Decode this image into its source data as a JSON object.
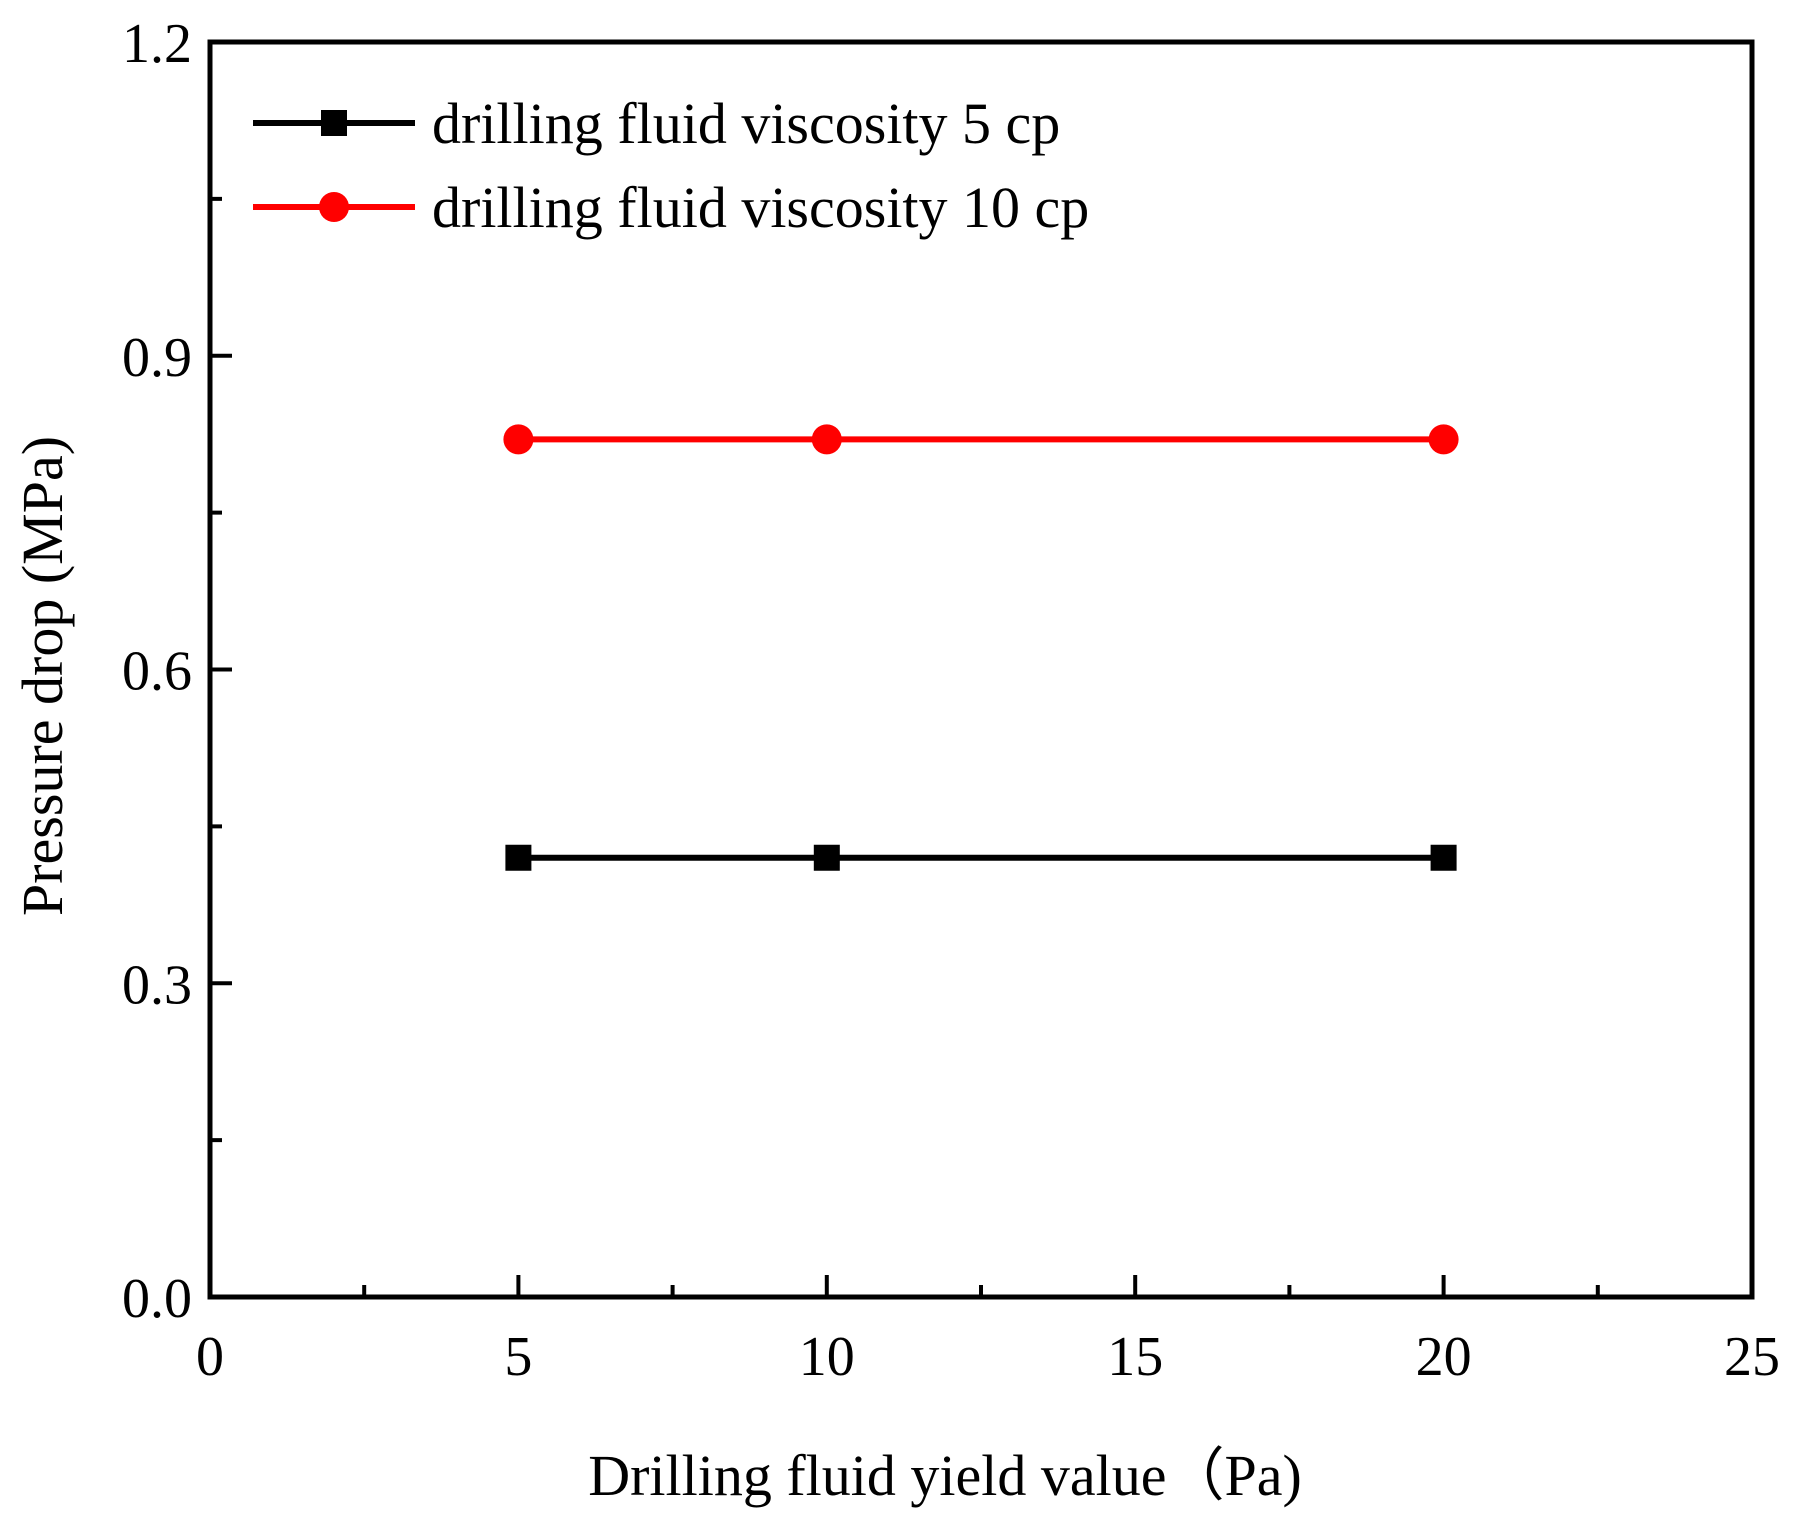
{
  "chart_data": {
    "type": "line",
    "title": "",
    "xlabel": "Drilling fluid yield  value（Pa)",
    "ylabel": "Pressure drop (MPa)",
    "xlim": [
      0,
      25
    ],
    "ylim": [
      0,
      1.2
    ],
    "x_major_ticks": [
      0,
      5,
      10,
      15,
      20,
      25
    ],
    "x_tick_labels": [
      "0",
      "5",
      "10",
      "15",
      "20",
      "25"
    ],
    "x_minor_step": 2.5,
    "y_major_ticks": [
      0,
      0.3,
      0.6,
      0.9,
      1.2
    ],
    "y_tick_labels": [
      "0.0",
      "0.3",
      "0.6",
      "0.9",
      "1.2"
    ],
    "y_minor_step": 0.15,
    "grid": false,
    "legend_position": "top-left",
    "series": [
      {
        "name": "drilling fluid viscosity 5 cp",
        "color": "#000000",
        "marker": "square",
        "x": [
          5,
          10,
          20
        ],
        "y": [
          0.42,
          0.42,
          0.42
        ]
      },
      {
        "name": "drilling fluid viscosity 10 cp",
        "color": "#ff0000",
        "marker": "circle",
        "x": [
          5,
          10,
          20
        ],
        "y": [
          0.82,
          0.82,
          0.82
        ]
      }
    ]
  }
}
